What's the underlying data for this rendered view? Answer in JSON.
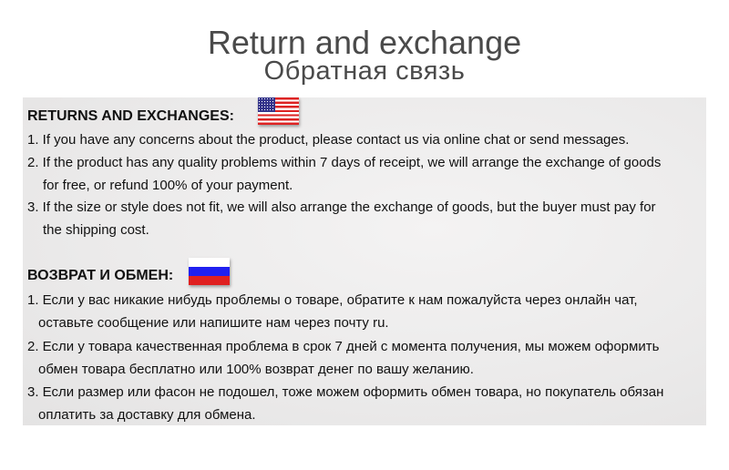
{
  "title": "Return and exchange",
  "subtitle": "Обратная связь",
  "english": {
    "heading": "RETURNS AND EXCHANGES:",
    "flag": "us-flag",
    "lines": [
      "1. If you have any concerns about the product, please contact us via online chat or send messages.",
      "2. If the product has any quality problems within 7 days of receipt, we will arrange the exchange of goods",
      "for free, or refund 100% of your payment.",
      "3. If the size or style does not fit, we will also arrange the exchange of goods, but the buyer must pay for",
      "the shipping cost."
    ]
  },
  "russian": {
    "heading": "ВОЗВРАТ И ОБМЕН:",
    "flag": "russia-flag",
    "lines": [
      "1. Если  у вас никакие нибудь проблемы о товаре, обратите к нам пожалуйста через онлайн чат,",
      "оставьте сообщение или напишите нам через почту ru.",
      "2. Если у товара качественная проблема в срок 7 дней с момента получения, мы можем оформить",
      "обмен товара бесплатно или 100% возврат денег по вашу желанию.",
      "3. Если размер или фасон не подошел, тоже можем оформить обмен товара, но покупатель обязан",
      "оплатить за доставку для обмена."
    ]
  }
}
